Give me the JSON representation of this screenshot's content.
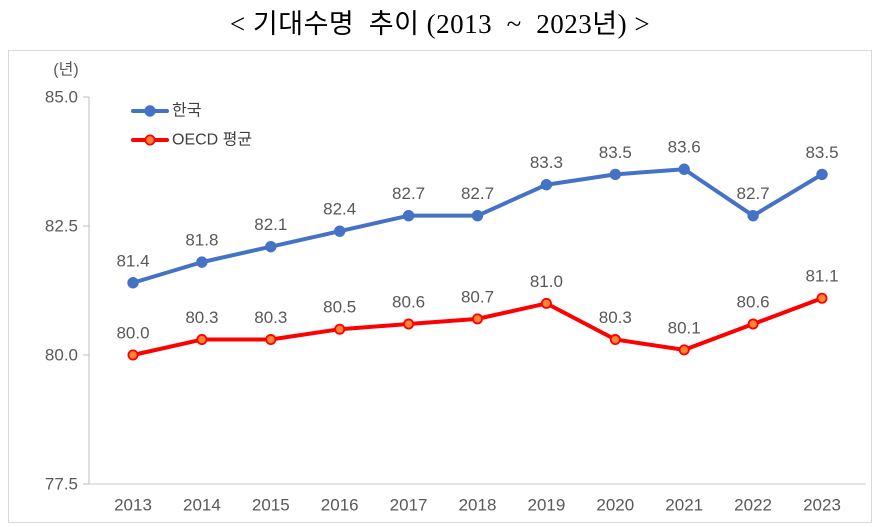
{
  "title": "< 기대수명  추이 (2013  ~  2023년) >",
  "chart_data": {
    "type": "line",
    "title": "기대수명 추이 (2013 ~ 2023년)",
    "unit_label": "(년)",
    "categories": [
      "2013",
      "2014",
      "2015",
      "2016",
      "2017",
      "2018",
      "2019",
      "2020",
      "2021",
      "2022",
      "2023"
    ],
    "series": [
      {
        "name": "한국",
        "color": "#4472C4",
        "marker_fill": "#4472C4",
        "marker_stroke": "#4472C4",
        "values": [
          81.4,
          81.8,
          82.1,
          82.4,
          82.7,
          82.7,
          83.3,
          83.5,
          83.6,
          82.7,
          83.5
        ]
      },
      {
        "name": "OECD 평균",
        "color": "#FF0000",
        "marker_fill": "#FF8533",
        "marker_stroke": "#FF0000",
        "values": [
          80.0,
          80.3,
          80.3,
          80.5,
          80.6,
          80.7,
          81.0,
          80.3,
          80.1,
          80.6,
          81.1
        ]
      }
    ],
    "ylim": [
      77.5,
      85.0
    ],
    "yticks": [
      85.0,
      82.5,
      80.0,
      77.5
    ],
    "ytick_labels": [
      "85.0",
      "82.5",
      "80.0",
      "77.5"
    ],
    "grid": false,
    "data_labels": true,
    "legend_position": "top-left",
    "colors": {
      "axis_line": "#BFBFBF",
      "baseline": "#C9C9C9",
      "tick_text": "#595959",
      "data_label_text": "#595959",
      "legend_text": "#404040",
      "plot_border": "#D9D9D9"
    }
  }
}
